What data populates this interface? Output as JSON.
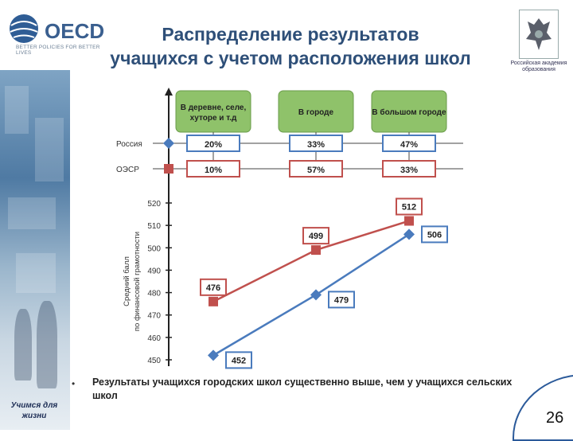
{
  "logo": {
    "word": "OECD",
    "tagline": "BETTER POLICIES FOR BETTER LIVES"
  },
  "title_line1": "Распределение результатов",
  "title_line2": "учащихся с учетом расположения школ",
  "emblem_caption": "Российская академия образования",
  "chart_data": {
    "type": "line",
    "categories": [
      "В деревне, селе, хуторе и т.д",
      "В городе",
      "В большом городе"
    ],
    "ylabel": "Средний балл по финансовой грамотности",
    "ylim": [
      450,
      520
    ],
    "yticks": [
      450,
      460,
      470,
      480,
      490,
      500,
      510,
      520
    ],
    "series": [
      {
        "name": "Россия",
        "values": [
          452,
          479,
          506
        ],
        "shares": [
          "20%",
          "33%",
          "47%"
        ],
        "color": "#4a7bbd"
      },
      {
        "name": "ОЭСР",
        "values": [
          476,
          499,
          512
        ],
        "shares": [
          "10%",
          "57%",
          "33%"
        ],
        "color": "#c0504d"
      }
    ]
  },
  "bullet_text": "Результаты учащихся городских школ существенно выше, чем у учащихся сельских школ",
  "motto": "Учимся для жизни",
  "page_number": "26"
}
